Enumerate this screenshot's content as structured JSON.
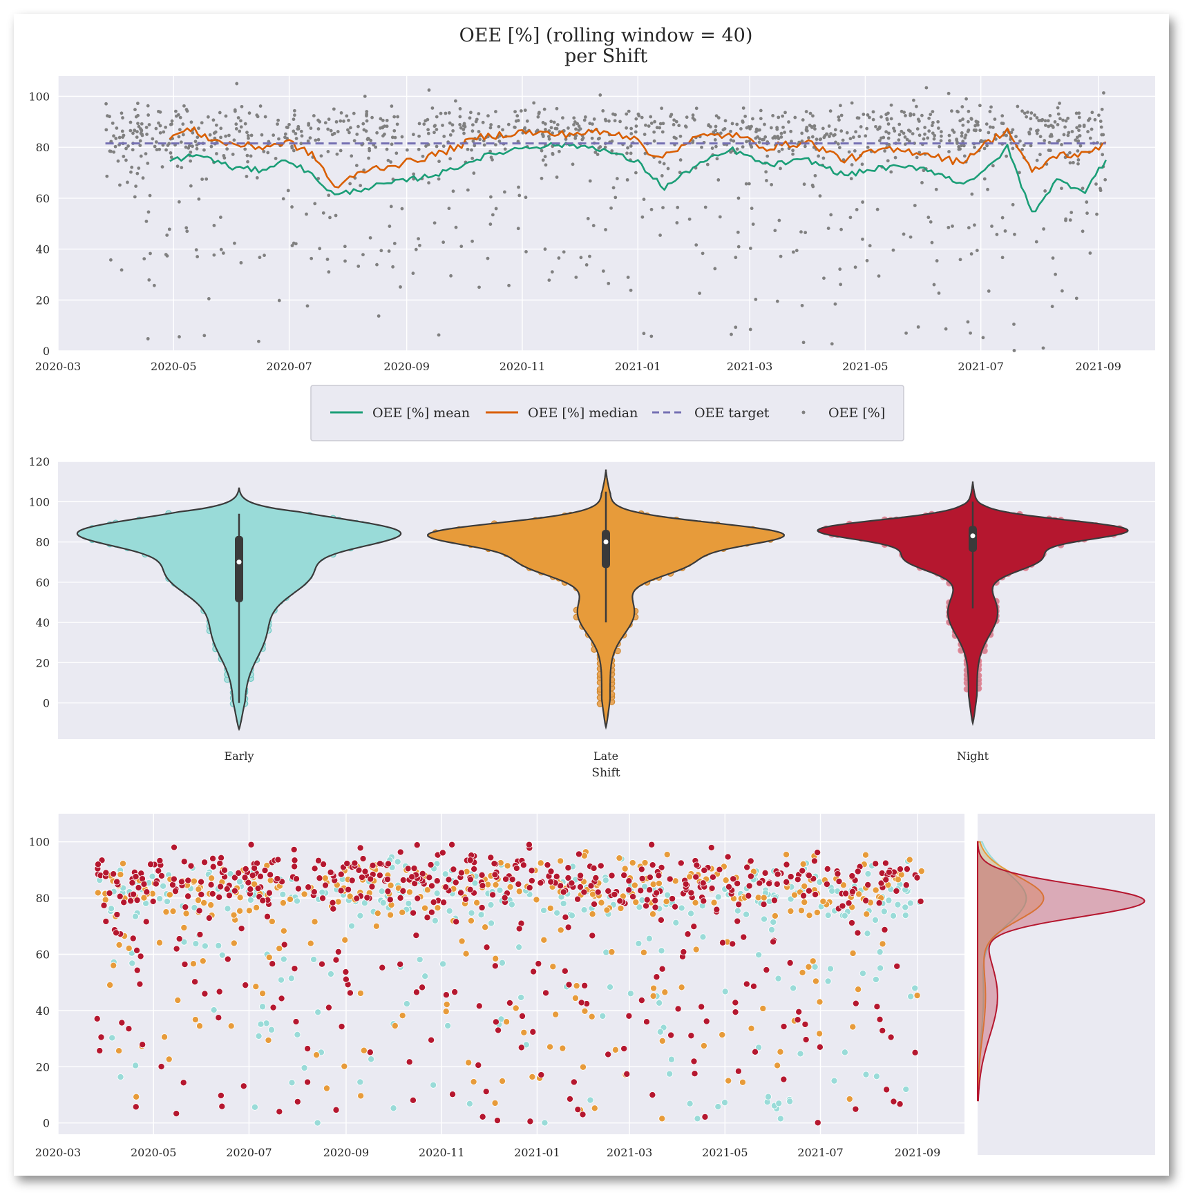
{
  "colors": {
    "panel_bg": "#eaeaf2",
    "grid": "#ffffff",
    "mean": "#1b9e77",
    "median": "#d95f02",
    "target": "#7570b3",
    "points": "#808080",
    "early": "#99dbd8",
    "late": "#e79b3a",
    "night": "#b5172f"
  },
  "chart_data": [
    {
      "type": "line",
      "title": "OEE [%] (rolling window = 40)",
      "subtitle": "per Shift",
      "xlabel": "",
      "ylabel": "",
      "x_ticks": [
        "2020-03",
        "2020-05",
        "2020-07",
        "2020-09",
        "2020-11",
        "2021-01",
        "2021-03",
        "2021-05",
        "2021-07",
        "2021-09"
      ],
      "y_ticks": [
        0,
        20,
        40,
        60,
        80,
        100
      ],
      "ylim": [
        0,
        108
      ],
      "xlim": [
        "2020-03-01",
        "2021-10-01"
      ],
      "grid": true,
      "legend": {
        "placement": "below",
        "entries": [
          "OEE [%] mean",
          "OEE [%] median",
          "OEE target",
          "OEE [%]"
        ]
      },
      "series": [
        {
          "name": "OEE [%] mean",
          "style": "solid",
          "x": [
            "2020-04-29",
            "2020-05-15",
            "2020-06-01",
            "2020-06-15",
            "2020-07-01",
            "2020-07-15",
            "2020-07-25",
            "2020-08-10",
            "2020-09-01",
            "2020-09-20",
            "2020-10-10",
            "2020-11-01",
            "2020-11-20",
            "2020-12-10",
            "2021-01-01",
            "2021-01-15",
            "2021-02-01",
            "2021-02-20",
            "2021-03-10",
            "2021-04-01",
            "2021-04-20",
            "2021-05-10",
            "2021-06-01",
            "2021-06-20",
            "2021-07-01",
            "2021-07-15",
            "2021-07-28",
            "2021-08-10",
            "2021-08-25",
            "2021-09-05"
          ],
          "values": [
            75,
            77,
            72,
            71,
            75,
            68,
            61,
            64,
            67,
            70,
            76,
            80,
            81,
            80,
            74,
            64,
            73,
            79,
            73,
            75,
            69,
            72,
            72,
            66,
            69,
            80,
            54,
            67,
            63,
            75
          ]
        },
        {
          "name": "OEE [%] median",
          "style": "solid",
          "x": [
            "2020-04-29",
            "2020-05-10",
            "2020-05-25",
            "2020-06-15",
            "2020-07-01",
            "2020-07-15",
            "2020-07-25",
            "2020-08-10",
            "2020-09-01",
            "2020-09-20",
            "2020-10-10",
            "2020-11-01",
            "2020-11-20",
            "2020-12-10",
            "2021-01-01",
            "2021-01-10",
            "2021-02-01",
            "2021-02-20",
            "2021-03-10",
            "2021-04-01",
            "2021-04-20",
            "2021-05-10",
            "2021-06-01",
            "2021-06-20",
            "2021-07-01",
            "2021-07-15",
            "2021-07-28",
            "2021-08-10",
            "2021-08-25",
            "2021-09-05"
          ],
          "values": [
            84,
            87,
            82,
            80,
            82,
            76,
            64,
            71,
            74,
            78,
            84,
            86,
            85,
            86,
            84,
            75,
            84,
            85,
            80,
            82,
            75,
            79,
            78,
            74,
            80,
            87,
            70,
            77,
            77,
            82
          ]
        },
        {
          "name": "OEE target",
          "style": "dashed",
          "x": [
            "2020-03-26",
            "2021-09-05"
          ],
          "values": [
            81.5,
            81.5
          ]
        }
      ],
      "scatter": {
        "name": "OEE [%]",
        "x_range": [
          "2020-03-26",
          "2021-09-05"
        ],
        "typical_range": [
          70,
          95
        ],
        "min": 0,
        "max": 105
      }
    },
    {
      "type": "violin",
      "xlabel": "Shift",
      "ylabel": "",
      "categories": [
        "Early",
        "Late",
        "Night"
      ],
      "y_ticks": [
        0,
        20,
        40,
        60,
        80,
        100,
        120
      ],
      "ylim": [
        -18,
        120
      ],
      "grid": true,
      "series": [
        {
          "name": "Early",
          "median": 70,
          "q1": 50,
          "q3": 83,
          "whisker_low": 0,
          "whisker_high": 94,
          "min_extent": -13,
          "max_extent": 107
        },
        {
          "name": "Late",
          "median": 80,
          "q1": 67,
          "q3": 86,
          "whisker_low": 40,
          "whisker_high": 105,
          "min_extent": -12,
          "max_extent": 116
        },
        {
          "name": "Night",
          "median": 83,
          "q1": 75,
          "q3": 88,
          "whisker_low": 47,
          "whisker_high": 100,
          "min_extent": -10,
          "max_extent": 110
        }
      ]
    },
    {
      "type": "scatter",
      "xlabel": "",
      "ylabel": "",
      "x_ticks": [
        "2020-03",
        "2020-05",
        "2020-07",
        "2020-09",
        "2020-11",
        "2021-01",
        "2021-03",
        "2021-05",
        "2021-07",
        "2021-09"
      ],
      "y_ticks": [
        0,
        20,
        40,
        60,
        80,
        100
      ],
      "ylim": [
        -4,
        110
      ],
      "xlim": [
        "2020-03-01",
        "2021-10-01"
      ],
      "grid": true,
      "series": [
        {
          "name": "Early",
          "typical_range": [
            45,
            95
          ],
          "min": 0,
          "max": 95
        },
        {
          "name": "Late",
          "typical_range": [
            55,
            92
          ],
          "min": 0,
          "max": 105
        },
        {
          "name": "Night",
          "typical_range": [
            65,
            97
          ],
          "min": 0,
          "max": 99
        }
      ],
      "marginal_kde": [
        {
          "name": "Early",
          "mode": 80
        },
        {
          "name": "Late",
          "mode": 80
        },
        {
          "name": "Night",
          "mode": 79
        }
      ]
    }
  ]
}
